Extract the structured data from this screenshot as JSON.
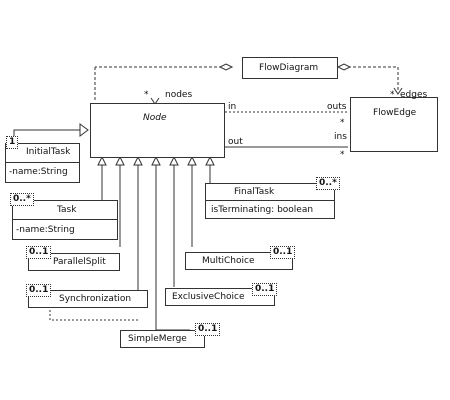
{
  "classes": {
    "flow_diagram": "FlowDiagram",
    "node": "Node",
    "flow_edge": "FlowEdge",
    "initial_task": "InitialTask",
    "initial_task_attr": "-name:String",
    "task": "Task",
    "task_attr": "-name:String",
    "final_task": "FinalTask",
    "final_task_attr": "isTerminating: boolean",
    "parallel_split": "ParallelSplit",
    "multi_choice": "MultiChoice",
    "synchronization": "Synchronization",
    "exclusive_choice": "ExclusiveChoice",
    "simple_merge": "SimpleMerge"
  },
  "roles": {
    "nodes": "nodes",
    "edges": "edges",
    "in": "in",
    "out": "out",
    "outs": "outs",
    "ins": "ins"
  },
  "multiplicities": {
    "nodes_star": "*",
    "edges_star": "*",
    "outs_star": "*",
    "ins_star": "*",
    "initial_task": "1",
    "task": "0..*",
    "final_task": "0..*",
    "parallel_split": "0..1",
    "multi_choice": "0..1",
    "synchronization": "0..1",
    "exclusive_choice": "0..1",
    "simple_merge": "0..1"
  }
}
